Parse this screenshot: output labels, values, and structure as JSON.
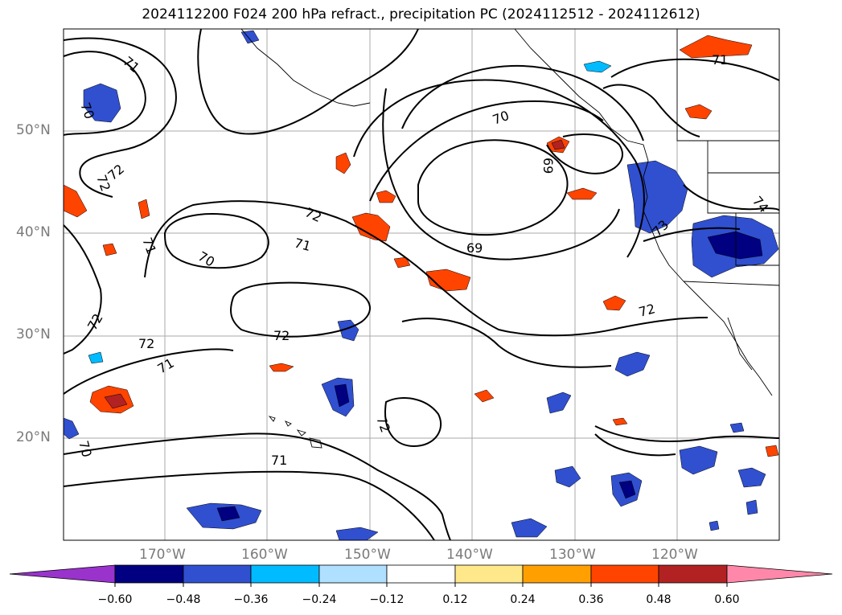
{
  "title": "2024112200 F024 200 hPa refract., precipitation PC (2024112512 - 2024112612)",
  "lat_labels": [
    "50°N",
    "40°N",
    "30°N",
    "20°N"
  ],
  "lon_labels": [
    "170°W",
    "160°W",
    "150°W",
    "140°W",
    "130°W",
    "120°W"
  ],
  "contour_labels": [
    "71",
    "70",
    "72",
    "72",
    "70",
    "71",
    "72",
    "72",
    "71",
    "70",
    "71",
    "72",
    "70",
    "69",
    "69",
    "72",
    "71",
    "71",
    "72",
    "73",
    "74",
    "72"
  ],
  "colorbar": {
    "ticks": [
      "−0.60",
      "−0.48",
      "−0.36",
      "−0.24",
      "−0.12",
      "0.12",
      "0.24",
      "0.36",
      "0.48",
      "0.60"
    ],
    "colors": [
      "#9933cc",
      "#000080",
      "#3050d0",
      "#00bbff",
      "#b0e0ff",
      "#ffffff",
      "#ffe88a",
      "#ffa000",
      "#ff4400",
      "#b22222",
      "#ff88aa"
    ]
  }
}
